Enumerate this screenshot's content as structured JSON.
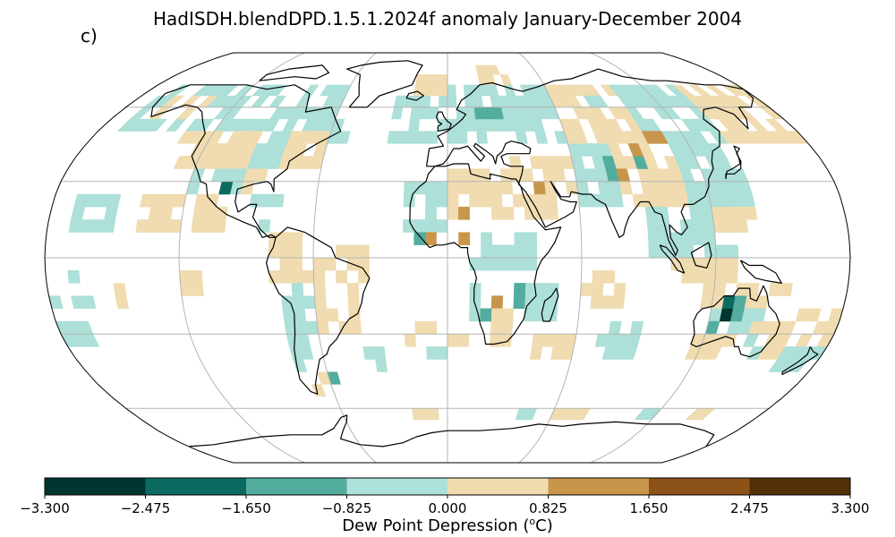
{
  "title": "HadISDH.blendDPD.1.5.1.2024f anomaly January-December 2004",
  "panel_label": "c)",
  "colorbar": {
    "label_prefix": "Dew Point Depression (",
    "label_sup": "o",
    "label_suffix": "C)",
    "ticks": [
      "−3.300",
      "−2.475",
      "−1.650",
      "−0.825",
      "0.000",
      "0.825",
      "1.650",
      "2.475",
      "3.300"
    ],
    "bins": [
      -3.3,
      -2.475,
      -1.65,
      -0.825,
      0.0,
      0.825,
      1.65,
      2.475,
      3.3
    ],
    "colors": [
      "#01352f",
      "#0b6b61",
      "#52ad9f",
      "#ace0d8",
      "#f0dcb0",
      "#c8964a",
      "#8c5217",
      "#533006"
    ]
  },
  "map": {
    "projection": "robinson",
    "gridlines": true,
    "meridians": [
      -120,
      -60,
      0,
      60,
      120
    ],
    "parallels": [
      -60,
      -30,
      0,
      30,
      60
    ]
  }
}
